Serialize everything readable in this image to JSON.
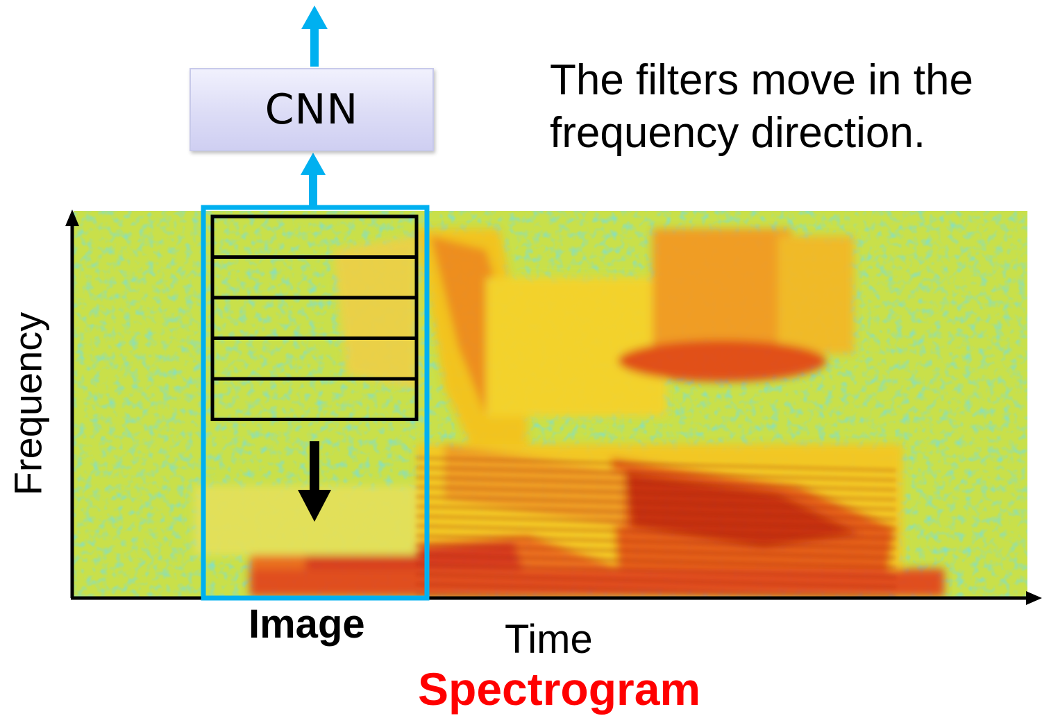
{
  "diagram": {
    "cnn_label": "CNN",
    "caption": "The filters move in the frequency direction.",
    "image_label": "Image",
    "x_axis_label": "Time",
    "y_axis_label": "Frequency",
    "title": "Spectrogram",
    "filter_count": 5,
    "colors": {
      "window_border": "#00b0f0",
      "arrow": "#00b0f0",
      "title": "#ff0000",
      "filter_outline": "#000000",
      "cnn_box_fill": "#dcdcf6"
    }
  }
}
